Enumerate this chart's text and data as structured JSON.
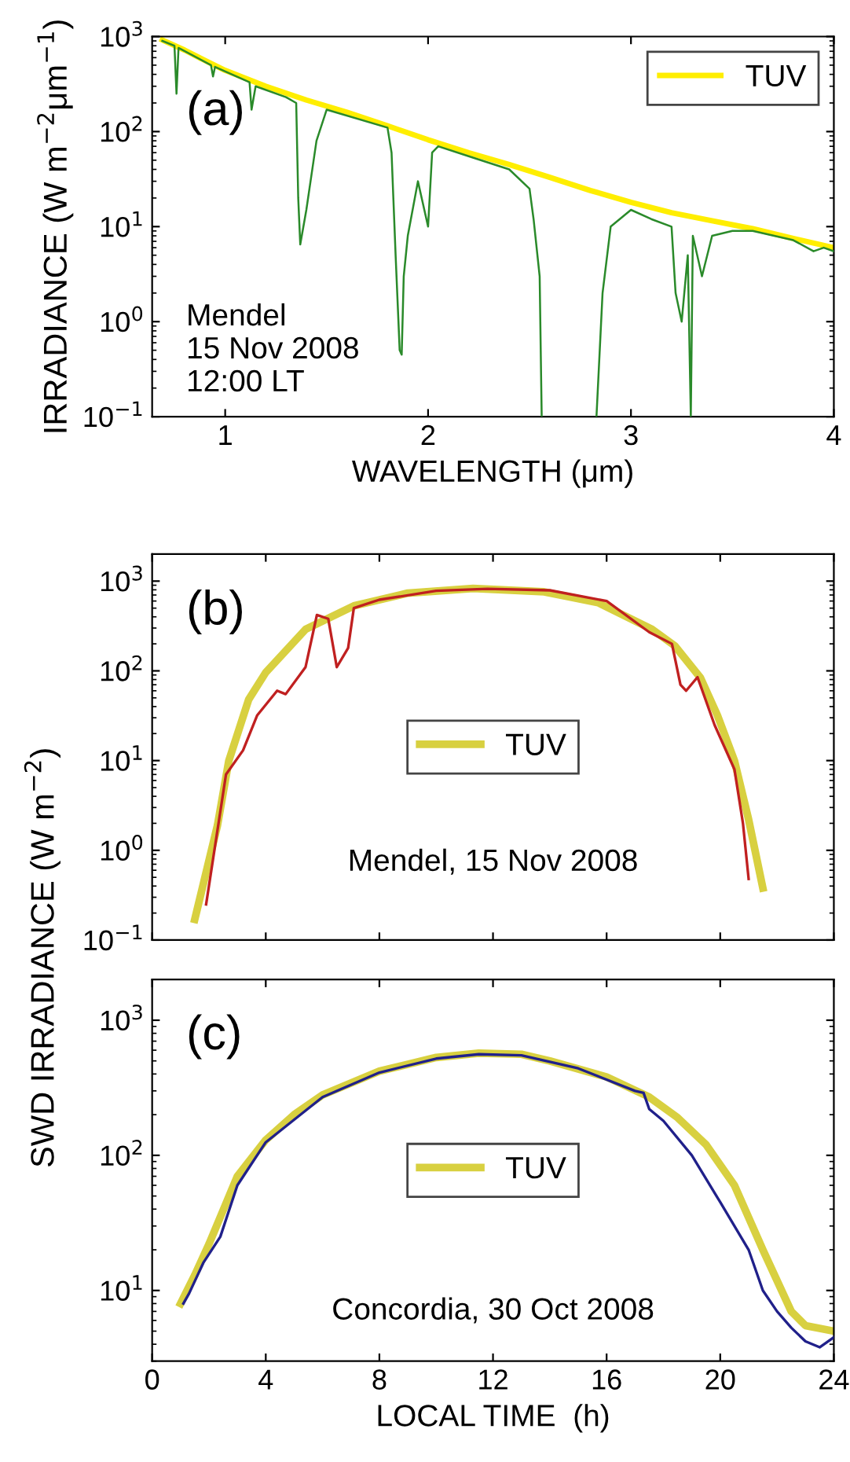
{
  "chart_data": [
    {
      "type": "line",
      "xlabel": "WAVELENGTH (μm)",
      "ylabel": "IRRADIANCE (W m$^{−2}$μm$^{−1}$)",
      "log": "y",
      "legend": "top right",
      "xlim": [
        0.64,
        4
      ],
      "xticks": [
        1,
        2,
        3,
        4
      ],
      "ylim": [
        0.1,
        1000
      ],
      "yticks": [
        {
          "value": 0.1,
          "label": "10$^{−1}$"
        },
        {
          "value": 1,
          "label": "10$^{0}$"
        },
        {
          "value": 10,
          "label": "10$^{1}$"
        },
        {
          "value": 100,
          "label": "10$^{2}$"
        },
        {
          "value": 1000,
          "label": "10$^{3}$"
        }
      ],
      "annotations": [
        "(a)",
        "Mendel\n15 Nov 2008\n12:00 LT"
      ],
      "series": [
        {
          "color": "#2a8a2a",
          "x": [
            0.69,
            0.75,
            0.76,
            0.77,
            0.93,
            0.94,
            0.95,
            1.12,
            1.13,
            1.15,
            1.3,
            1.35,
            1.36,
            1.37,
            1.4,
            1.45,
            1.5,
            1.8,
            1.82,
            1.84,
            1.86,
            1.87,
            1.88,
            1.9,
            1.95,
            2.0,
            2.02,
            2.05,
            2.2,
            2.4,
            2.5,
            2.52,
            2.55,
            2.56,
            2.7,
            2.83,
            2.86,
            2.9,
            3.0,
            3.1,
            3.2,
            3.22,
            3.25,
            3.28,
            3.295,
            3.305,
            3.35,
            3.4,
            3.5,
            3.6,
            3.8,
            3.9,
            3.95,
            4.0
          ],
          "values": [
            900,
            800,
            250,
            760,
            500,
            380,
            480,
            330,
            170,
            300,
            230,
            200,
            20,
            6.5,
            15,
            80,
            170,
            110,
            60,
            5,
            0.5,
            0.45,
            3,
            8,
            30,
            10,
            60,
            70,
            55,
            40,
            25,
            12,
            3,
            0.1,
            null,
            0.1,
            2,
            10,
            15,
            12,
            10,
            2,
            1,
            5,
            0.1,
            8,
            3,
            8,
            9,
            9,
            7.2,
            5.5,
            6,
            5.5
          ]
        },
        {
          "name": "TUV",
          "color": "#ffee00",
          "x": [
            0.69,
            0.8,
            0.9,
            1.0,
            1.2,
            1.4,
            1.6,
            1.8,
            2.0,
            2.2,
            2.4,
            2.6,
            2.8,
            3.0,
            3.2,
            3.4,
            3.6,
            3.8,
            4.0
          ],
          "values": [
            920,
            720,
            560,
            440,
            300,
            215,
            160,
            115,
            82,
            60,
            45,
            33,
            24,
            18,
            14,
            11.5,
            9.5,
            7.5,
            6.0
          ]
        }
      ]
    },
    {
      "type": "line",
      "ylabel": "SWD IRRADIANCE (W m$^{−2}$)",
      "log": "y",
      "legend": "center",
      "tick_labels": "y",
      "xlim": [
        0,
        24
      ],
      "xticks": [
        0,
        4,
        8,
        12,
        16,
        20,
        24
      ],
      "ylim": [
        0.1,
        2000
      ],
      "yticks": [
        {
          "value": 0.1,
          "label": "10$^{−1}$"
        },
        {
          "value": 1,
          "label": "10$^{0}$"
        },
        {
          "value": 10,
          "label": "10$^{1}$"
        },
        {
          "value": 100,
          "label": "10$^{2}$"
        },
        {
          "value": 1000,
          "label": "10$^{3}$"
        }
      ],
      "annotations": [
        "(b)",
        "Mendel, 15 Nov 2008"
      ],
      "series": [
        {
          "name": "TUV",
          "color": "#d8d040",
          "x": [
            1.5,
            2.3,
            2.7,
            3.4,
            4.0,
            5.4,
            7.1,
            9.0,
            11.3,
            13.8,
            15.7,
            17.6,
            18.4,
            19.3,
            19.9,
            20.5,
            21.0,
            21.5
          ],
          "values": [
            0.17,
            1.9,
            10,
            48,
            96,
            290,
            530,
            735,
            830,
            760,
            575,
            290,
            190,
            84,
            32,
            10,
            2.2,
            0.38
          ]
        },
        {
          "color": "#c02020",
          "x": [
            1.9,
            2.6,
            3.2,
            3.7,
            4.4,
            4.7,
            5.4,
            5.8,
            6.2,
            6.5,
            6.9,
            7.1,
            8,
            10,
            11.8,
            14,
            16,
            17.5,
            18.3,
            18.6,
            18.8,
            19.2,
            19.8,
            20.5,
            20.8,
            21.0
          ],
          "values": [
            0.25,
            7,
            13,
            32,
            60,
            55,
            110,
            420,
            380,
            110,
            180,
            500,
            620,
            780,
            820,
            790,
            600,
            270,
            200,
            70,
            60,
            85,
            25,
            8,
            2,
            0.48
          ]
        }
      ]
    },
    {
      "type": "line",
      "xlabel": "LOCAL TIME  (h)",
      "log": "y",
      "legend": "center",
      "xlim": [
        0,
        24
      ],
      "xticks": [
        0,
        4,
        8,
        12,
        16,
        20,
        24
      ],
      "ylim": [
        3,
        2000
      ],
      "yticks": [
        {
          "value": 10,
          "label": "10$^{1}$"
        },
        {
          "value": 100,
          "label": "10$^{2}$"
        },
        {
          "value": 1000,
          "label": "10$^{3}$"
        }
      ],
      "annotations": [
        "(c)",
        "Concordia, 30 Oct 2008"
      ],
      "series": [
        {
          "name": "TUV",
          "color": "#d8d040",
          "x": [
            1.0,
            1.5,
            2,
            3,
            4,
            5,
            6,
            8,
            10,
            11.5,
            13,
            14,
            16,
            17.5,
            18.5,
            19.5,
            20.5,
            21.5,
            22.5,
            23,
            24
          ],
          "values": [
            8,
            13,
            22,
            70,
            130,
            200,
            280,
            420,
            530,
            570,
            560,
            500,
            380,
            270,
            190,
            120,
            60,
            20,
            7,
            5.5,
            5
          ]
        },
        {
          "color": "#20208a",
          "x": [
            1.1,
            1.3,
            1.8,
            2.4,
            3,
            4,
            6,
            8,
            10,
            11.5,
            13,
            15,
            17,
            17.3,
            17.5,
            18,
            19,
            20,
            21,
            21.5,
            22,
            22.5,
            23,
            23.5,
            24
          ],
          "values": [
            8,
            9.5,
            16,
            25,
            60,
            125,
            270,
            410,
            520,
            560,
            550,
            440,
            300,
            290,
            220,
            180,
            100,
            45,
            20,
            10,
            7,
            5.3,
            4.2,
            3.8,
            4.5
          ]
        }
      ]
    }
  ]
}
